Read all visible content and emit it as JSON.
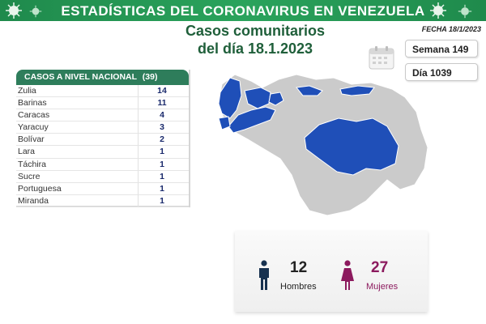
{
  "header": {
    "title": "ESTADÍSTICAS DEL CORONAVIRUS EN VENEZUELA",
    "subtitle_line1": "Casos comunitarios",
    "subtitle_line2": "del día 18.1.2023",
    "fecha": "FECHA 18/1/2023"
  },
  "summary": {
    "week_label": "Semana 149",
    "day_label": "Día 1039"
  },
  "cases_table": {
    "header_label": "CASOS A NIVEL NACIONAL",
    "total": "(39)",
    "rows": [
      {
        "state": "Zulia",
        "cases": "14"
      },
      {
        "state": "Barinas",
        "cases": "11"
      },
      {
        "state": "Caracas",
        "cases": "4"
      },
      {
        "state": "Yaracuy",
        "cases": "3"
      },
      {
        "state": "Bolívar",
        "cases": "2"
      },
      {
        "state": "Lara",
        "cases": "1"
      },
      {
        "state": "Táchira",
        "cases": "1"
      },
      {
        "state": "Sucre",
        "cases": "1"
      },
      {
        "state": "Portuguesa",
        "cases": "1"
      },
      {
        "state": "Miranda",
        "cases": "1"
      }
    ]
  },
  "gender": {
    "men_count": "12",
    "men_label": "Hombres",
    "women_count": "27",
    "women_label": "Mujeres"
  },
  "colors": {
    "banner": "#1f8a4c",
    "table_header": "#2e7d5b",
    "map_highlight": "#1f4fb8",
    "map_base": "#c8c8c8",
    "men": "#17314f",
    "women": "#8c1a5e"
  },
  "icons": [
    "virus-icon",
    "calendar-icon",
    "man-icon",
    "woman-icon"
  ]
}
